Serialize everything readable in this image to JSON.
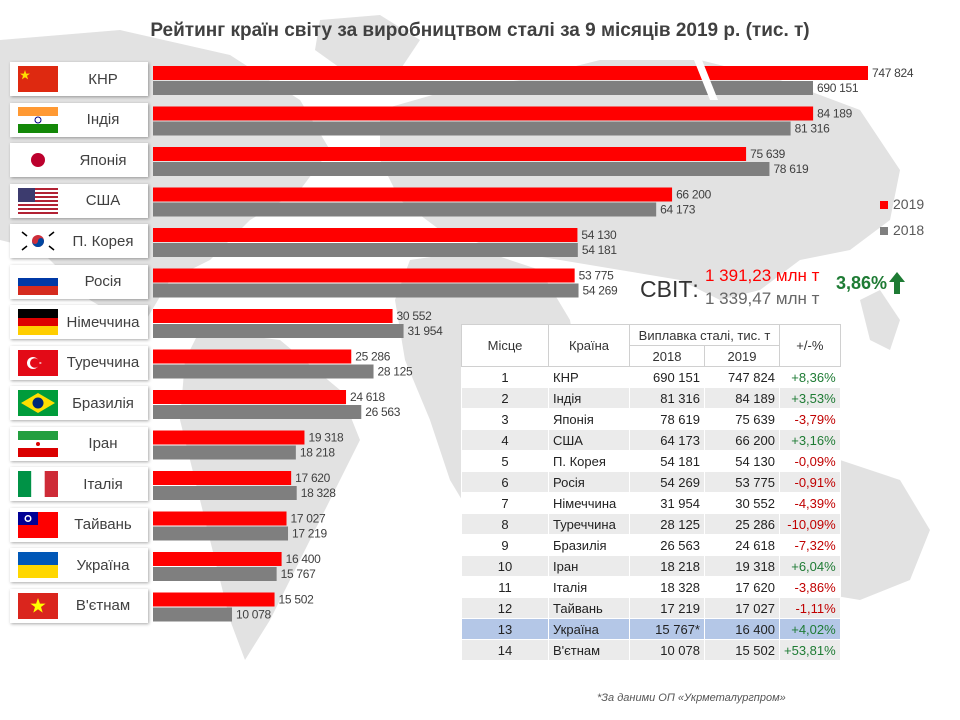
{
  "chart_data": {
    "type": "bar",
    "orientation": "horizontal",
    "title": "Рейтинг країн світу за виробництвом сталі за 9 місяців 2019 р. (тис. т)",
    "categories": [
      "КНР",
      "Індія",
      "Японія",
      "США",
      "П. Корея",
      "Росія",
      "Німеччина",
      "Туреччина",
      "Бразилія",
      "Іран",
      "Італія",
      "Тайвань",
      "Україна",
      "В'єтнам"
    ],
    "series": [
      {
        "name": "2019",
        "values": [
          747824,
          84189,
          75639,
          66200,
          54130,
          53775,
          30552,
          25286,
          24618,
          19318,
          17620,
          17027,
          16400,
          15502
        ],
        "labels": [
          "747 824",
          "84 189",
          "75 639",
          "66 200",
          "54 130",
          "53 775",
          "30 552",
          "25 286",
          "24 618",
          "19 318",
          "17 620",
          "17 027",
          "16 400",
          "15 502"
        ]
      },
      {
        "name": "2018",
        "values": [
          690151,
          81316,
          78619,
          64173,
          54181,
          54269,
          31954,
          28125,
          26563,
          18218,
          18328,
          17219,
          15767,
          10078
        ],
        "labels": [
          "690 151",
          "81 316",
          "78 619",
          "64 173",
          "54 181",
          "54 269",
          "31 954",
          "28 125",
          "26 563",
          "18 218",
          "18 328",
          "17 219",
          "15 767",
          "10 078"
        ]
      }
    ],
    "axis_break": "after 90000 for КНР",
    "legend_position": "right",
    "colors": {
      "2019": "#ff0000",
      "2018": "#7f7f7f"
    }
  },
  "countries": [
    {
      "name": "КНР",
      "flag": "china-flag"
    },
    {
      "name": "Індія",
      "flag": "india-flag"
    },
    {
      "name": "Японія",
      "flag": "japan-flag"
    },
    {
      "name": "США",
      "flag": "usa-flag"
    },
    {
      "name": "П. Корея",
      "flag": "south-korea-flag"
    },
    {
      "name": "Росія",
      "flag": "russia-flag"
    },
    {
      "name": "Німеччина",
      "flag": "germany-flag"
    },
    {
      "name": "Туреччина",
      "flag": "turkey-flag"
    },
    {
      "name": "Бразилія",
      "flag": "brazil-flag"
    },
    {
      "name": "Іран",
      "flag": "iran-flag"
    },
    {
      "name": "Італія",
      "flag": "italy-flag"
    },
    {
      "name": "Тайвань",
      "flag": "taiwan-flag"
    },
    {
      "name": "Україна",
      "flag": "ukraine-flag"
    },
    {
      "name": "В'єтнам",
      "flag": "vietnam-flag"
    }
  ],
  "legend": {
    "label_2019": "2019",
    "label_2018": "2018"
  },
  "world": {
    "label": "СВІТ:",
    "value_2019": "1 391,23 млн т",
    "value_2018": "1 339,47 млн т",
    "growth": "3,86%"
  },
  "table": {
    "headers": {
      "place": "Місце",
      "country": "Країна",
      "smelting": "Виплавка сталі, тис. т",
      "year_2018": "2018",
      "year_2019": "2019",
      "change": "+/-%"
    },
    "rows": [
      {
        "place": "1",
        "country": "КНР",
        "v2018": "690 151",
        "v2019": "747 824",
        "change": "+8,36%"
      },
      {
        "place": "2",
        "country": "Індія",
        "v2018": "81 316",
        "v2019": "84 189",
        "change": "+3,53%"
      },
      {
        "place": "3",
        "country": "Японія",
        "v2018": "78 619",
        "v2019": "75 639",
        "change": "-3,79%"
      },
      {
        "place": "4",
        "country": "США",
        "v2018": "64 173",
        "v2019": "66 200",
        "change": "+3,16%"
      },
      {
        "place": "5",
        "country": "П. Корея",
        "v2018": "54 181",
        "v2019": "54 130",
        "change": "-0,09%"
      },
      {
        "place": "6",
        "country": "Росія",
        "v2018": "54 269",
        "v2019": "53 775",
        "change": "-0,91%"
      },
      {
        "place": "7",
        "country": "Німеччина",
        "v2018": "31 954",
        "v2019": "30 552",
        "change": "-4,39%"
      },
      {
        "place": "8",
        "country": "Туреччина",
        "v2018": "28 125",
        "v2019": "25 286",
        "change": "-10,09%"
      },
      {
        "place": "9",
        "country": "Бразилія",
        "v2018": "26 563",
        "v2019": "24 618",
        "change": "-7,32%"
      },
      {
        "place": "10",
        "country": "Іран",
        "v2018": "18 218",
        "v2019": "19 318",
        "change": "+6,04%"
      },
      {
        "place": "11",
        "country": "Італія",
        "v2018": "18 328",
        "v2019": "17 620",
        "change": "-3,86%"
      },
      {
        "place": "12",
        "country": "Тайвань",
        "v2018": "17 219",
        "v2019": "17 027",
        "change": "-1,11%"
      },
      {
        "place": "13",
        "country": "Україна",
        "v2018": "15 767*",
        "v2019": "16 400",
        "change": "+4,02%"
      },
      {
        "place": "14",
        "country": "В'єтнам",
        "v2018": "10 078",
        "v2019": "15 502",
        "change": "+53,81%"
      }
    ]
  },
  "footnote": "*За даними ОП «Укрметалургпром»"
}
